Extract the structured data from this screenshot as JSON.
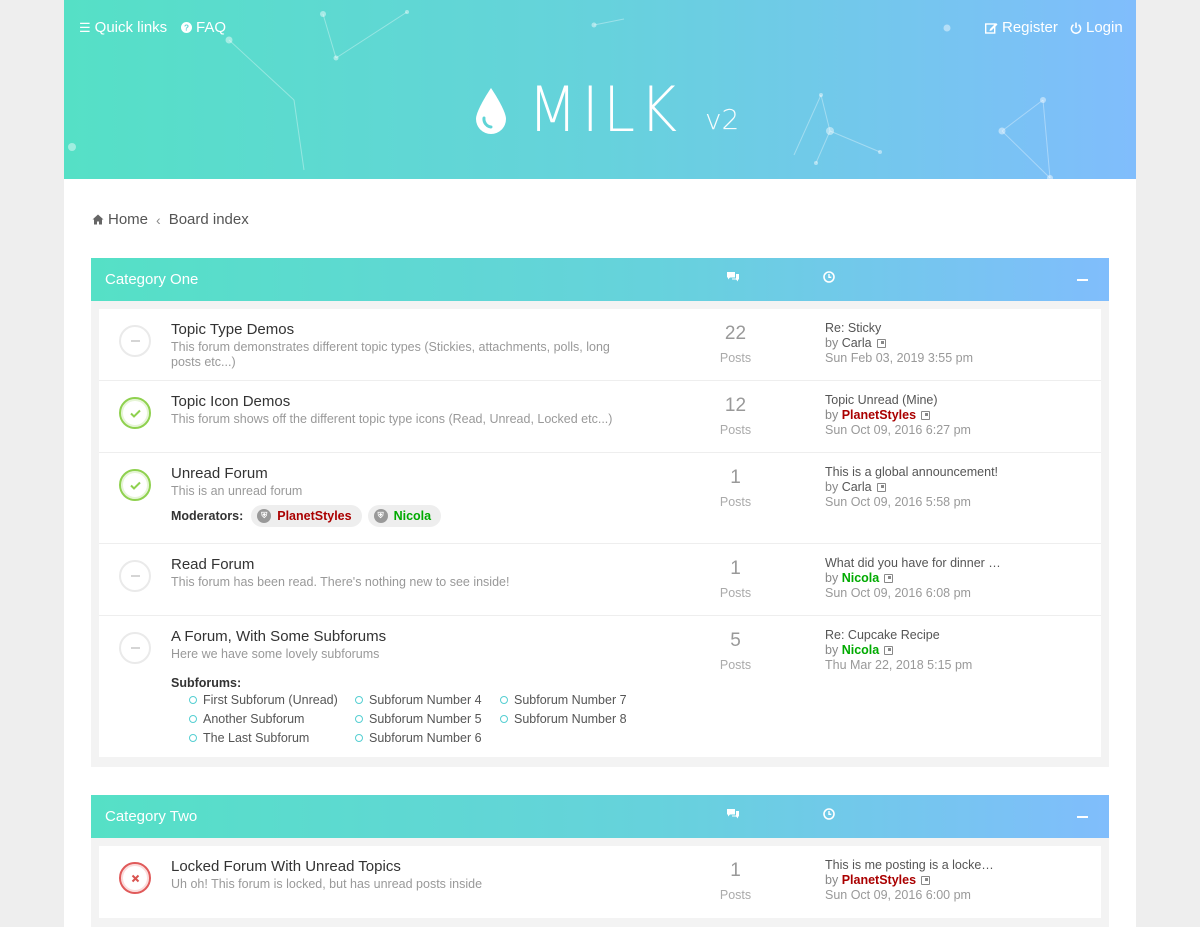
{
  "header": {
    "quick_links": "Quick links",
    "faq": "FAQ",
    "register": "Register",
    "login": "Login",
    "logo_name": "MILK",
    "logo_version": "v2"
  },
  "breadcrumb": {
    "home": "Home",
    "separator": "‹",
    "board_index": "Board index"
  },
  "colors": {
    "gradient_start": "#55e0c6",
    "gradient_end": "#80bdfc",
    "unread_green": "#8fd14f",
    "locked_red": "#e05a5a",
    "user_red": "#aa0000",
    "user_green": "#00aa00"
  },
  "categories": [
    {
      "title": "Category One",
      "forums": [
        {
          "title": "Topic Type Demos",
          "desc": "This forum demonstrates different topic types (Stickies, attachments, polls, long posts etc...)",
          "status": "read",
          "count": "22",
          "count_label": "Posts",
          "last_title": "Re: Sticky",
          "last_by": "by",
          "last_user": "Carla",
          "last_date": "Sun Feb 03, 2019 3:55 pm"
        },
        {
          "title": "Topic Icon Demos",
          "desc": "This forum shows off the different topic type icons (Read, Unread, Locked etc...)",
          "status": "unread",
          "count": "12",
          "count_label": "Posts",
          "last_title": "Topic Unread (Mine)",
          "last_by": "by",
          "last_user": "PlanetStyles",
          "last_date": "Sun Oct 09, 2016 6:27 pm"
        },
        {
          "title": "Unread Forum",
          "desc": "This is an unread forum",
          "status": "unread",
          "count": "1",
          "count_label": "Posts",
          "last_title": "This is a global announcement!",
          "last_by": "by",
          "last_user": "Carla",
          "last_date": "Sun Oct 09, 2016 5:58 pm",
          "moderators_label": "Moderators:",
          "moderators": [
            "PlanetStyles",
            "Nicola"
          ]
        },
        {
          "title": "Read Forum",
          "desc": "This forum has been read. There's nothing new to see inside!",
          "status": "read",
          "count": "1",
          "count_label": "Posts",
          "last_title": "What did you have for dinner …",
          "last_by": "by",
          "last_user": "Nicola",
          "last_date": "Sun Oct 09, 2016 6:08 pm"
        },
        {
          "title": "A Forum, With Some Subforums",
          "desc": "Here we have some lovely subforums",
          "status": "read",
          "count": "5",
          "count_label": "Posts",
          "last_title": "Re: Cupcake Recipe",
          "last_by": "by",
          "last_user": "Nicola",
          "last_date": "Thu Mar 22, 2018 5:15 pm",
          "subforums_label": "Subforums:",
          "subforums": [
            "First Subforum (Unread)",
            "Another Subforum",
            "The Last Subforum",
            "Subforum Number 4",
            "Subforum Number 5",
            "Subforum Number 6",
            "Subforum Number 7",
            "Subforum Number 8"
          ]
        }
      ]
    },
    {
      "title": "Category Two",
      "forums": [
        {
          "title": "Locked Forum With Unread Topics",
          "desc": "Uh oh! This forum is locked, but has unread posts inside",
          "status": "locked",
          "count": "1",
          "count_label": "Posts",
          "last_title": "This is me posting is a locke…",
          "last_by": "by",
          "last_user": "PlanetStyles",
          "last_date": "Sun Oct 09, 2016 6:00 pm"
        }
      ]
    }
  ]
}
